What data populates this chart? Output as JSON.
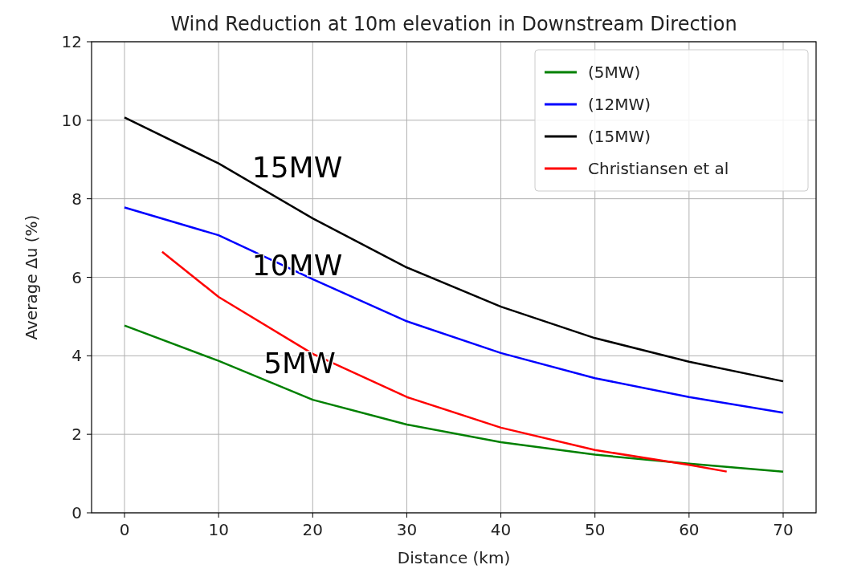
{
  "chart_data": {
    "type": "line",
    "title": "Wind Reduction at 10m elevation in Downstream Direction",
    "xlabel": "Distance (km)",
    "ylabel": "Average Δu (%)",
    "xlim": [
      -3.5,
      73.5
    ],
    "xticks": [
      0,
      10,
      20,
      30,
      40,
      50,
      60,
      70
    ],
    "ylim": [
      0,
      12
    ],
    "yticks": [
      0,
      2,
      4,
      6,
      8,
      10,
      12
    ],
    "grid": true,
    "legend": "top right",
    "series": [
      {
        "name": "(5MW)",
        "color": "#008000",
        "x": [
          0,
          10,
          20,
          30,
          40,
          50,
          60,
          70
        ],
        "values": [
          4.77,
          3.87,
          2.88,
          2.25,
          1.8,
          1.48,
          1.25,
          1.05
        ]
      },
      {
        "name": "(12MW)",
        "color": "#0000ff",
        "x": [
          0,
          10,
          20,
          30,
          40,
          50,
          60,
          70
        ],
        "values": [
          7.78,
          7.07,
          5.95,
          4.88,
          4.07,
          3.43,
          2.95,
          2.55
        ]
      },
      {
        "name": "(15MW)",
        "color": "#000000",
        "x": [
          0,
          10,
          20,
          30,
          40,
          50,
          60,
          70
        ],
        "values": [
          10.07,
          8.9,
          7.5,
          6.25,
          5.25,
          4.45,
          3.85,
          3.35
        ]
      },
      {
        "name": "Christiansen et al",
        "color": "#ff0000",
        "x": [
          4,
          10,
          20,
          30,
          40,
          50,
          60,
          64
        ],
        "values": [
          6.65,
          5.5,
          4.05,
          2.95,
          2.17,
          1.6,
          1.22,
          1.05
        ]
      }
    ],
    "annotations": [
      "15MW",
      "10MW",
      "5MW"
    ]
  }
}
